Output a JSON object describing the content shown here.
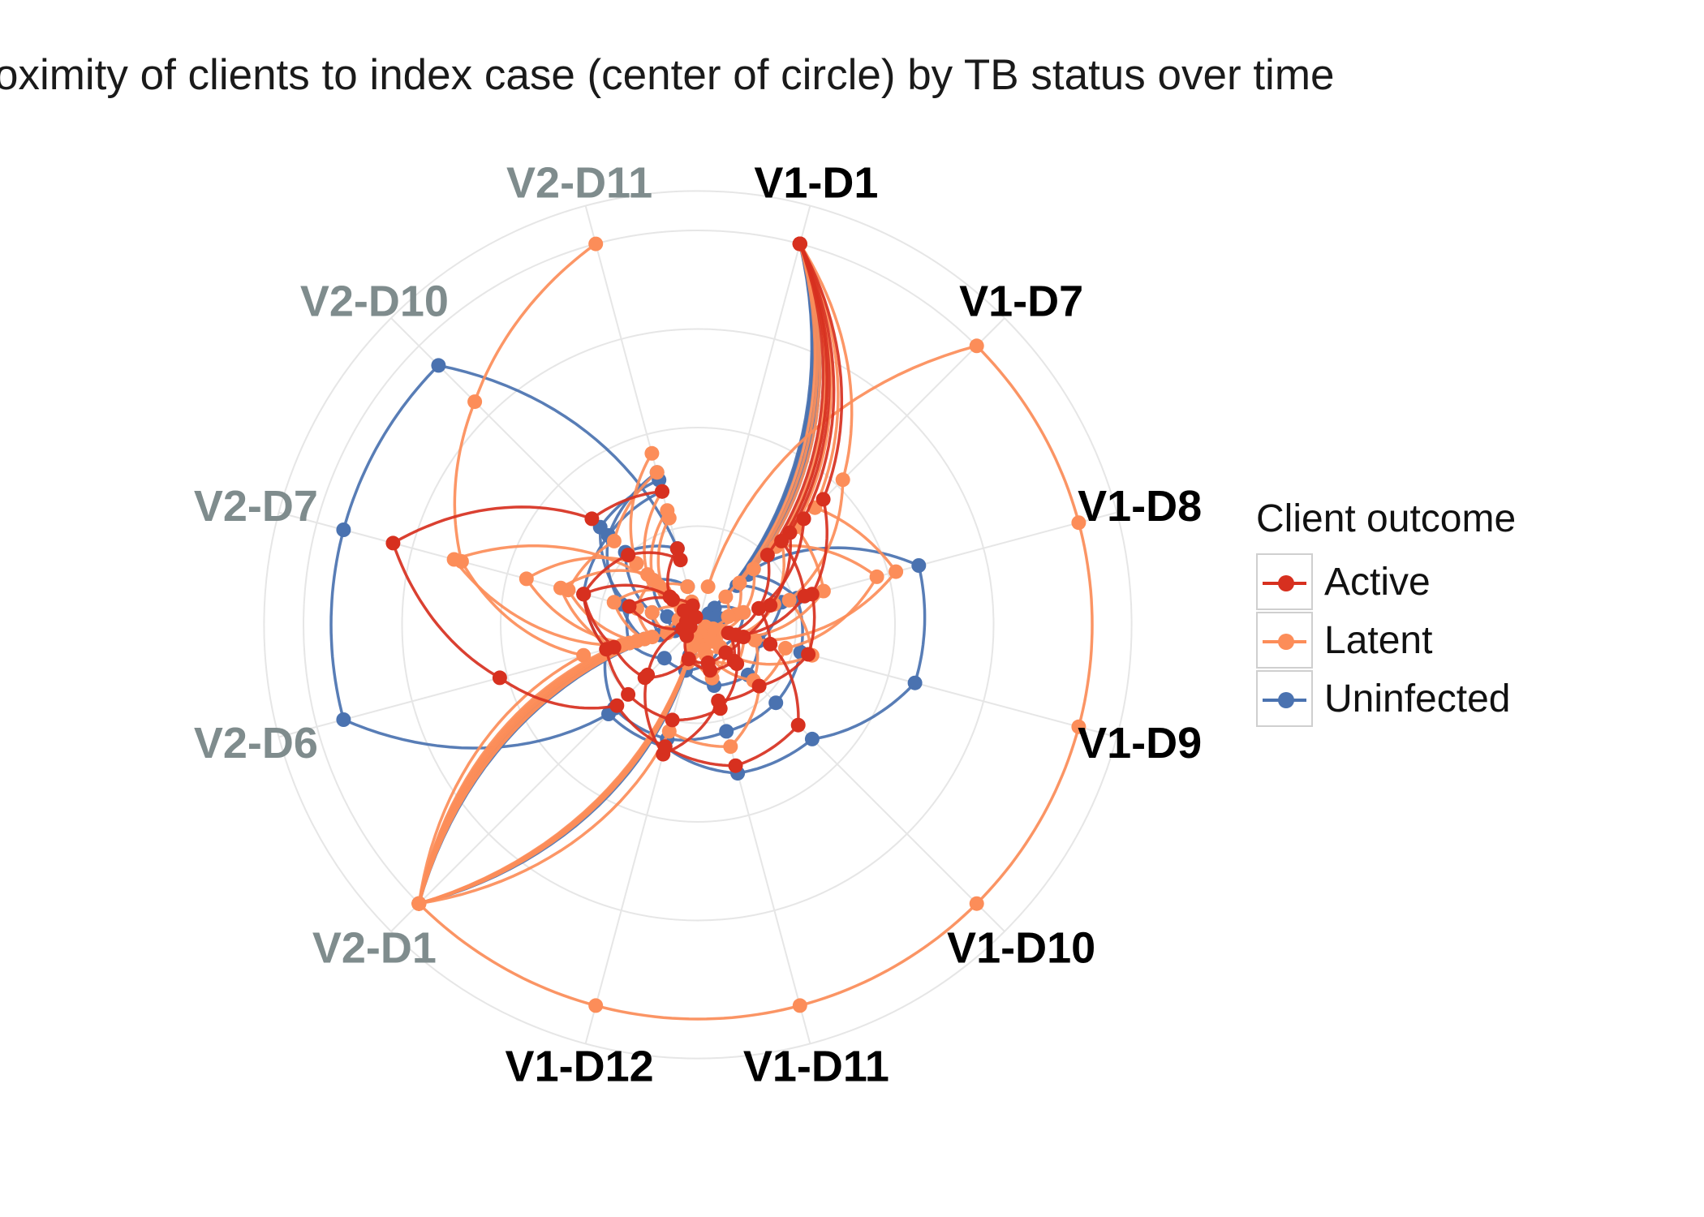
{
  "title": "Proximity of clients to index case (center of circle) by TB status over time",
  "legend": {
    "title": "Client outcome",
    "items": [
      {
        "label": "Active",
        "color": "#d7301f"
      },
      {
        "label": "Latent",
        "color": "#fc8d59"
      },
      {
        "label": "Uninfected",
        "color": "#4a72b0"
      }
    ]
  },
  "colors": {
    "Active": "#d7301f",
    "Latent": "#fc8d59",
    "Uninfected": "#4a72b0",
    "visit1_label": "#000000",
    "visit2_label": "#7f8c8d"
  },
  "chart_data": {
    "type": "line",
    "coordinate_system": "polar",
    "title": "Proximity of clients to index case (center of circle) by TB status over time",
    "axis_categories": [
      "V1-D1",
      "V1-D7",
      "V1-D8",
      "V1-D9",
      "V1-D10",
      "V1-D11",
      "V1-D12",
      "V2-D1",
      "V2-D6",
      "V2-D7",
      "V2-D10",
      "V2-D11"
    ],
    "category_label_colors": {
      "V1": "black",
      "V2": "gray"
    },
    "grid": true,
    "legend_position": "right",
    "radial_scale": "0 = index case (center), 1 = outermost ring",
    "series": [
      {
        "outcome": "Active",
        "values": [
          1.0,
          0.45,
          0.3,
          0.29,
          0.22,
          0.2,
          0.34,
          0.18,
          0.04,
          0.18,
          0.09,
          0.05
        ]
      },
      {
        "outcome": "Active",
        "values": [
          1.0,
          0.33,
          0.19,
          0.12,
          0.1,
          0.1,
          0.09,
          0.04,
          0.02,
          0.03,
          0.05,
          0.02
        ]
      },
      {
        "outcome": "Active",
        "values": [
          1.0,
          0.25,
          0.16,
          0.08,
          0.13,
          0.12,
          0.09,
          0.19,
          0.22,
          0.3,
          0.25,
          0.17
        ]
      },
      {
        "outcome": "Active",
        "values": [
          1.0,
          0.38,
          0.16,
          0.19,
          0.36,
          0.37,
          0.32,
          0.29,
          0.52,
          0.8,
          0.38,
          0.35
        ]
      },
      {
        "outcome": "Active",
        "values": [
          1.0,
          0.3,
          0.28,
          0.1,
          0.14,
          0.22,
          0.25,
          0.25,
          0.24,
          0.3,
          0.1,
          0.2
        ]
      },
      {
        "outcome": "Latent",
        "values": [
          0.1,
          1.0,
          1.0,
          1.0,
          1.0,
          1.0,
          1.0,
          1.0,
          0.08,
          0.05,
          0.05,
          0.02
        ]
      },
      {
        "outcome": "Latent",
        "values": [
          1.0,
          0.52,
          0.24,
          0.3,
          0.1,
          0.14,
          0.06,
          1.0,
          0.3,
          0.62,
          0.8,
          1.0
        ]
      },
      {
        "outcome": "Latent",
        "values": [
          1.0,
          0.42,
          0.52,
          0.15,
          0.2,
          0.06,
          0.1,
          1.0,
          0.2,
          0.64,
          0.14,
          0.1
        ]
      },
      {
        "outcome": "Latent",
        "values": [
          1.0,
          0.28,
          0.47,
          0.23,
          0.22,
          0.32,
          0.28,
          1.0,
          0.18,
          0.45,
          0.22,
          0.45
        ]
      },
      {
        "outcome": "Latent",
        "values": [
          1.0,
          0.35,
          0.33,
          0.12,
          0.14,
          0.08,
          0.05,
          1.0,
          0.16,
          0.34,
          0.3,
          0.4
        ]
      },
      {
        "outcome": "Latent",
        "values": [
          1.0,
          0.3,
          0.2,
          0.1,
          0.1,
          0.06,
          0.09,
          1.0,
          0.22,
          0.36,
          0.18,
          0.35
        ]
      },
      {
        "outcome": "Latent",
        "values": [
          1.0,
          0.2,
          0.12,
          0.06,
          0.08,
          0.05,
          0.06,
          1.0,
          0.14,
          0.22,
          0.12,
          0.28
        ]
      },
      {
        "outcome": "Latent",
        "values": [
          1.0,
          0.15,
          0.1,
          0.04,
          0.06,
          0.03,
          0.05,
          1.0,
          0.12,
          0.16,
          0.16,
          0.3
        ]
      },
      {
        "outcome": "Latent",
        "values": [
          1.0,
          0.1,
          0.08,
          0.02,
          0.04,
          0.02,
          0.03,
          1.0,
          0.08,
          0.12,
          0.06,
          0.06
        ]
      },
      {
        "outcome": "Uninfected",
        "values": [
          1.0,
          0.2,
          0.58,
          0.57,
          0.41,
          0.39,
          0.32,
          0.32,
          0.93,
          0.93,
          0.93,
          0.2
        ]
      },
      {
        "outcome": "Uninfected",
        "values": [
          1.0,
          0.18,
          0.26,
          0.27,
          0.28,
          0.28,
          0.3,
          0.3,
          0.24,
          0.3,
          0.32,
          0.4
        ]
      },
      {
        "outcome": "Uninfected",
        "values": [
          1.0,
          0.14,
          0.22,
          0.16,
          0.18,
          0.16,
          0.12,
          0.12,
          0.18,
          0.18,
          0.35,
          0.38
        ]
      },
      {
        "outcome": "Uninfected",
        "values": [
          1.0,
          0.06,
          0.12,
          0.1,
          0.08,
          0.1,
          0.12,
          1.0,
          0.14,
          0.2,
          0.32,
          0.35
        ]
      },
      {
        "outcome": "Uninfected",
        "values": [
          1.0,
          0.04,
          0.06,
          0.05,
          0.04,
          0.04,
          0.06,
          1.0,
          0.1,
          0.12,
          0.26,
          0.2
        ]
      },
      {
        "outcome": "Uninfected",
        "values": [
          1.0,
          0.02,
          0.04,
          0.03,
          0.02,
          0.03,
          0.08,
          1.0,
          0.06,
          0.08,
          0.16,
          0.1
        ]
      }
    ]
  }
}
